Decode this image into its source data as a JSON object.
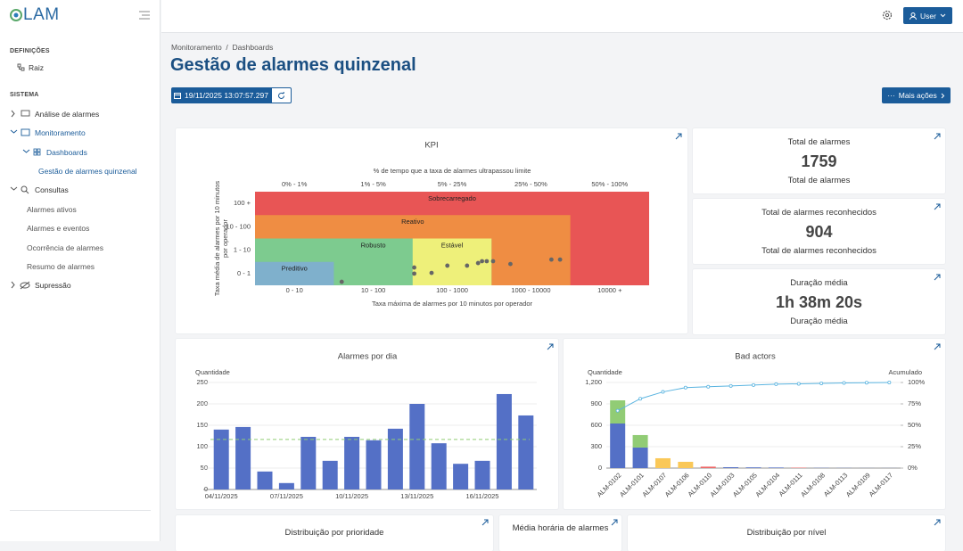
{
  "sidebar": {
    "logo": "LAM",
    "items": [
      "DEFINIÇÕES",
      "Raiz",
      "SISTEMA",
      "Análise de alarmes",
      "Monitoramento",
      "Dashboards",
      "Gestão de alarmes quinzenal",
      "Consultas",
      "Alarmes ativos",
      "Alarmes e eventos",
      "Ocorrência de alarmes",
      "Resumo de alarmes",
      "Supressão"
    ]
  },
  "topbar": {
    "user": "User"
  },
  "breadcrumb": [
    "Monitoramento",
    "Dashboards"
  ],
  "page_title": "Gestão de alarmes quinzenal",
  "date": "19/11/2025 13:07:57.297",
  "actions": "Mais ações",
  "kpi_cards": [
    {
      "title": "Total de alarmes",
      "value": 1759,
      "caption": "Total de alarmes"
    },
    {
      "title": "Total de alarmes reconhecidos",
      "value": 904,
      "caption": "Total de alarmes reconhecidos"
    },
    {
      "title": "Duração média",
      "value": "1h 38m 20s",
      "caption": "Duração média"
    }
  ],
  "chart_data": [
    {
      "type": "scatter",
      "title": "KPI",
      "x2_title": "% de tempo que a taxa de alarmes ultrapassou limite",
      "x2_categories": [
        "0% - 1%",
        "1% - 5%",
        "5% - 25%",
        "25% - 50%",
        "50% - 100%"
      ],
      "x_title": "Taxa máxima de alarmes por 10 minutos por operador",
      "x_categories": [
        "0 - 10",
        "10 - 100",
        "100 - 1000",
        "1000 - 10000",
        "10000 +"
      ],
      "y_title": [
        "Taxa média de alarmes por 10 minutos",
        "por operador"
      ],
      "y_categories": [
        "0 - 1",
        "1 - 10",
        "10 - 100",
        "100 +"
      ],
      "xlim": [
        0,
        5
      ],
      "ylim": [
        0,
        4
      ],
      "zones": [
        {
          "label": "Sobrecarregado",
          "color": "#e85555",
          "x": [
            0,
            5
          ],
          "y": [
            0,
            4
          ]
        },
        {
          "label": "Reativo",
          "color": "#ef8d43",
          "x": [
            0,
            4
          ],
          "y": [
            0,
            3
          ]
        },
        {
          "label": "Robusto",
          "color": "#7dcb8f",
          "x": [
            0,
            3
          ],
          "y": [
            0,
            2
          ]
        },
        {
          "label": "Estável",
          "color": "#eef07a",
          "x": [
            2,
            3
          ],
          "y": [
            0,
            2
          ]
        },
        {
          "label": "Preditivo",
          "color": "#7fb0cc",
          "x": [
            0,
            1
          ],
          "y": [
            0,
            1
          ]
        }
      ],
      "points": {
        "color": "#666666",
        "x": [
          1.1,
          2.02,
          2.02,
          2.24,
          2.44,
          2.69,
          2.83,
          2.88,
          2.94,
          3.02,
          3.24,
          3.76,
          3.87
        ],
        "y": [
          0.15,
          0.5,
          0.76,
          0.53,
          0.84,
          0.84,
          0.95,
          1.03,
          1.03,
          1.03,
          0.91,
          1.1,
          1.1
        ]
      }
    },
    {
      "type": "bar",
      "title": "Alarmes por dia",
      "y_label": "Quantidade",
      "categories": [
        "04/11/2025",
        null,
        null,
        "07/11/2025",
        null,
        null,
        "10/11/2025",
        null,
        null,
        "13/11/2025",
        null,
        null,
        "16/11/2025",
        null,
        null
      ],
      "values": [
        140,
        146,
        42,
        15,
        123,
        67,
        123,
        115,
        142,
        200,
        108,
        60,
        67,
        223,
        173
      ],
      "color": "#5470c6",
      "mean": 117,
      "mean_color": "#91cc75",
      "ylim": [
        0,
        250
      ],
      "yticks": [
        0,
        50,
        100,
        150,
        200,
        250
      ],
      "grid": true
    },
    {
      "type": "pareto",
      "title": "Bad actors",
      "y_label": "Quantidade",
      "y2_label": "Acumulado",
      "categories": [
        "ALM-0102",
        "ALM-0101",
        "ALM-0107",
        "ALM-0106",
        "ALM-0110",
        "ALM-0103",
        "ALM-0105",
        "ALM-0104",
        "ALM-0111",
        "ALM-0108",
        "ALM-0113",
        "ALM-0109",
        "ALM-0117"
      ],
      "series": [
        {
          "color": "#5470c6",
          "values": [
            625,
            288,
            0,
            0,
            0,
            12,
            10,
            8,
            0,
            3,
            2,
            1,
            1
          ]
        },
        {
          "color": "#91cc75",
          "values": [
            325,
            175,
            0,
            0,
            0,
            0,
            0,
            0,
            0,
            0,
            0,
            0,
            0
          ]
        },
        {
          "color": "#fac858",
          "values": [
            0,
            0,
            138,
            88,
            0,
            0,
            0,
            0,
            0,
            0,
            0,
            0,
            0
          ]
        },
        {
          "color": "#ee6666",
          "values": [
            0,
            0,
            0,
            0,
            20,
            0,
            0,
            0,
            6,
            0,
            0,
            0,
            0
          ]
        },
        {
          "color": "#5ab4e0",
          "axis": "y2",
          "type": "line",
          "values": [
            67,
            81,
            89,
            94,
            95,
            96,
            97,
            98,
            98.5,
            99,
            99.5,
            99.8,
            100
          ]
        }
      ],
      "ylim": [
        0,
        1200
      ],
      "yticks": [
        0,
        300,
        600,
        900,
        {
          "value": 1200,
          "label": "1,200"
        }
      ],
      "y2lim": [
        0,
        100
      ],
      "y2ticks": [
        {
          "value": 0,
          "label": "0%"
        },
        {
          "value": 25,
          "label": "25%"
        },
        {
          "value": 50,
          "label": "50%"
        },
        {
          "value": 75,
          "label": "75%"
        },
        {
          "value": 100,
          "label": "100%"
        }
      ],
      "grid": true
    }
  ],
  "bottom_cards": [
    "Distribuição por prioridade",
    "Média horária de alarmes",
    "Distribuição por nível"
  ]
}
